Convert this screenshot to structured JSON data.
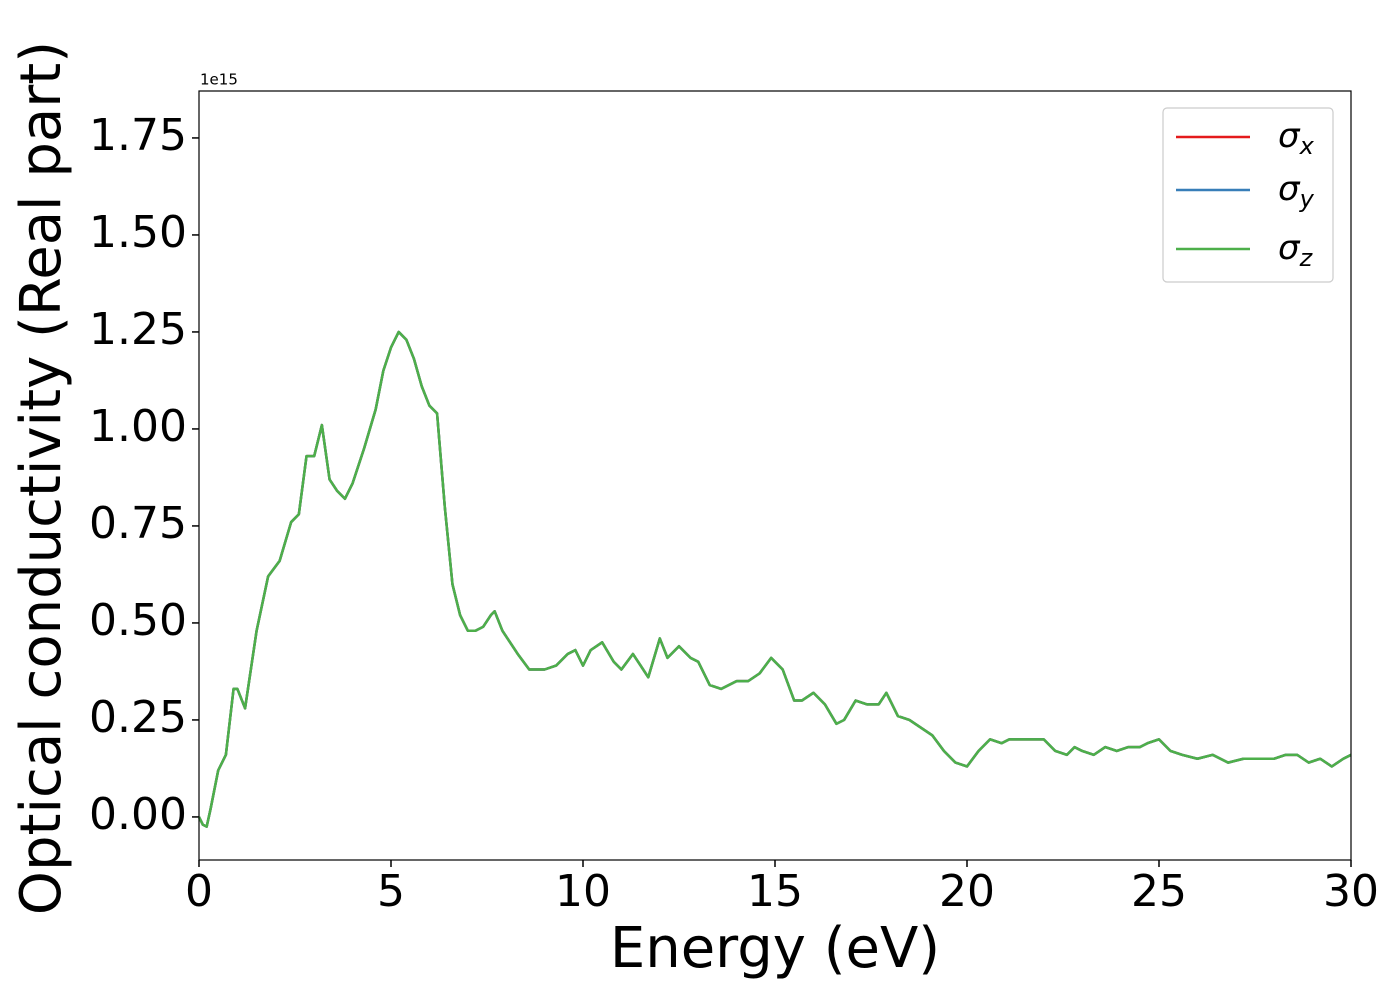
{
  "chart_data": {
    "type": "line",
    "xlabel": "Energy (eV)",
    "ylabel": "Optical conductivity (Real part)",
    "y_offset_label": "1e15",
    "x": [
      0,
      0.1,
      0.2,
      0.3,
      0.5,
      0.7,
      0.9,
      1.0,
      1.2,
      1.5,
      1.8,
      2.1,
      2.4,
      2.6,
      2.8,
      3.0,
      3.2,
      3.4,
      3.6,
      3.8,
      4.0,
      4.3,
      4.6,
      4.8,
      5.0,
      5.2,
      5.4,
      5.6,
      5.8,
      6.0,
      6.2,
      6.4,
      6.6,
      6.8,
      7.0,
      7.2,
      7.4,
      7.6,
      7.7,
      7.9,
      8.1,
      8.3,
      8.6,
      8.8,
      9.0,
      9.3,
      9.6,
      9.8,
      10.0,
      10.2,
      10.5,
      10.8,
      11.0,
      11.3,
      11.5,
      11.7,
      12.0,
      12.2,
      12.5,
      12.8,
      13.0,
      13.3,
      13.6,
      14.0,
      14.3,
      14.6,
      14.9,
      15.2,
      15.5,
      15.7,
      16.0,
      16.3,
      16.6,
      16.8,
      17.1,
      17.4,
      17.7,
      17.9,
      18.2,
      18.5,
      18.8,
      19.1,
      19.4,
      19.7,
      20.0,
      20.3,
      20.6,
      20.9,
      21.1,
      21.4,
      21.7,
      22.0,
      22.3,
      22.6,
      22.8,
      23.0,
      23.3,
      23.6,
      23.9,
      24.2,
      24.5,
      24.7,
      25.0,
      25.3,
      25.6,
      26.0,
      26.4,
      26.8,
      27.2,
      27.6,
      28.0,
      28.3,
      28.6,
      28.9,
      29.2,
      29.5,
      29.8,
      30.0
    ],
    "series": [
      {
        "name": "σx",
        "color": "#e41a1c",
        "values": [
          0,
          -0.02,
          -0.025,
          0.02,
          0.12,
          0.16,
          0.33,
          0.33,
          0.28,
          0.48,
          0.62,
          0.66,
          0.76,
          0.78,
          0.93,
          0.93,
          1.01,
          0.87,
          0.84,
          0.82,
          0.86,
          0.95,
          1.05,
          1.15,
          1.21,
          1.25,
          1.23,
          1.18,
          1.11,
          1.06,
          1.04,
          0.8,
          0.6,
          0.52,
          0.48,
          0.48,
          0.49,
          0.52,
          0.53,
          0.48,
          0.45,
          0.42,
          0.38,
          0.38,
          0.38,
          0.39,
          0.42,
          0.43,
          0.39,
          0.43,
          0.45,
          0.4,
          0.38,
          0.42,
          0.39,
          0.36,
          0.46,
          0.41,
          0.44,
          0.41,
          0.4,
          0.34,
          0.33,
          0.35,
          0.35,
          0.37,
          0.41,
          0.38,
          0.3,
          0.3,
          0.32,
          0.29,
          0.24,
          0.25,
          0.3,
          0.29,
          0.29,
          0.32,
          0.26,
          0.25,
          0.23,
          0.21,
          0.17,
          0.14,
          0.13,
          0.17,
          0.2,
          0.19,
          0.2,
          0.2,
          0.2,
          0.2,
          0.17,
          0.16,
          0.18,
          0.17,
          0.16,
          0.18,
          0.17,
          0.18,
          0.18,
          0.19,
          0.2,
          0.17,
          0.16,
          0.15,
          0.16,
          0.14,
          0.15,
          0.15,
          0.15,
          0.16,
          0.16,
          0.14,
          0.15,
          0.13,
          0.15,
          0.16
        ]
      },
      {
        "name": "σy",
        "color": "#377eb8",
        "values": [
          0,
          -0.02,
          -0.025,
          0.02,
          0.12,
          0.16,
          0.33,
          0.33,
          0.28,
          0.48,
          0.62,
          0.66,
          0.76,
          0.78,
          0.93,
          0.93,
          1.01,
          0.87,
          0.84,
          0.82,
          0.86,
          0.95,
          1.05,
          1.15,
          1.21,
          1.25,
          1.23,
          1.18,
          1.11,
          1.06,
          1.04,
          0.8,
          0.6,
          0.52,
          0.48,
          0.48,
          0.49,
          0.52,
          0.53,
          0.48,
          0.45,
          0.42,
          0.38,
          0.38,
          0.38,
          0.39,
          0.42,
          0.43,
          0.39,
          0.43,
          0.45,
          0.4,
          0.38,
          0.42,
          0.39,
          0.36,
          0.46,
          0.41,
          0.44,
          0.41,
          0.4,
          0.34,
          0.33,
          0.35,
          0.35,
          0.37,
          0.41,
          0.38,
          0.3,
          0.3,
          0.32,
          0.29,
          0.24,
          0.25,
          0.3,
          0.29,
          0.29,
          0.32,
          0.26,
          0.25,
          0.23,
          0.21,
          0.17,
          0.14,
          0.13,
          0.17,
          0.2,
          0.19,
          0.2,
          0.2,
          0.2,
          0.2,
          0.17,
          0.16,
          0.18,
          0.17,
          0.16,
          0.18,
          0.17,
          0.18,
          0.18,
          0.19,
          0.2,
          0.17,
          0.16,
          0.15,
          0.16,
          0.14,
          0.15,
          0.15,
          0.15,
          0.16,
          0.16,
          0.14,
          0.15,
          0.13,
          0.15,
          0.16
        ]
      },
      {
        "name": "σz",
        "color": "#4daf4a",
        "values": [
          0,
          -0.02,
          -0.025,
          0.02,
          0.12,
          0.16,
          0.33,
          0.33,
          0.28,
          0.48,
          0.62,
          0.66,
          0.76,
          0.78,
          0.93,
          0.93,
          1.01,
          0.87,
          0.84,
          0.82,
          0.86,
          0.95,
          1.05,
          1.15,
          1.21,
          1.25,
          1.23,
          1.18,
          1.11,
          1.06,
          1.04,
          0.8,
          0.6,
          0.52,
          0.48,
          0.48,
          0.49,
          0.52,
          0.53,
          0.48,
          0.45,
          0.42,
          0.38,
          0.38,
          0.38,
          0.39,
          0.42,
          0.43,
          0.39,
          0.43,
          0.45,
          0.4,
          0.38,
          0.42,
          0.39,
          0.36,
          0.46,
          0.41,
          0.44,
          0.41,
          0.4,
          0.34,
          0.33,
          0.35,
          0.35,
          0.37,
          0.41,
          0.38,
          0.3,
          0.3,
          0.32,
          0.29,
          0.24,
          0.25,
          0.3,
          0.29,
          0.29,
          0.32,
          0.26,
          0.25,
          0.23,
          0.21,
          0.17,
          0.14,
          0.13,
          0.17,
          0.2,
          0.19,
          0.2,
          0.2,
          0.2,
          0.2,
          0.17,
          0.16,
          0.18,
          0.17,
          0.16,
          0.18,
          0.17,
          0.18,
          0.18,
          0.19,
          0.2,
          0.17,
          0.16,
          0.15,
          0.16,
          0.14,
          0.15,
          0.15,
          0.15,
          0.16,
          0.16,
          0.14,
          0.15,
          0.13,
          0.15,
          0.16
        ]
      }
    ],
    "xlim": [
      0,
      30
    ],
    "xticks": [
      0,
      5,
      10,
      15,
      20,
      25,
      30
    ],
    "ylim": [
      -0.111,
      1.871
    ],
    "yticks": [
      {
        "value": 0,
        "label": "0.00"
      },
      {
        "value": 0.25,
        "label": "0.25"
      },
      {
        "value": 0.5,
        "label": "0.50"
      },
      {
        "value": 0.75,
        "label": "0.75"
      },
      {
        "value": 1,
        "label": "1.00"
      },
      {
        "value": 1.25,
        "label": "1.25"
      },
      {
        "value": 1.5,
        "label": "1.50"
      },
      {
        "value": 1.75,
        "label": "1.75"
      }
    ],
    "grid": false,
    "legend": "upper right"
  }
}
